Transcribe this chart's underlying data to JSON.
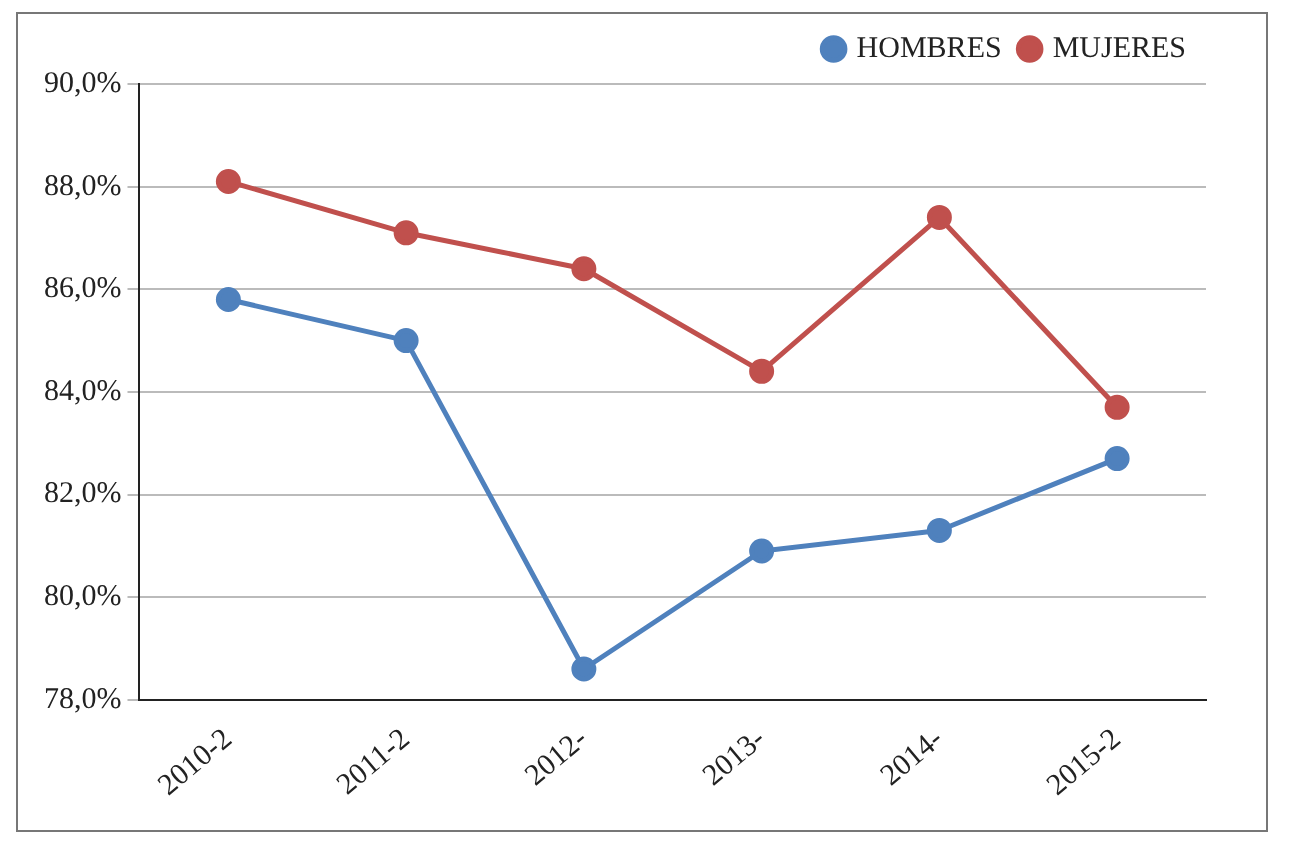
{
  "chart_data": {
    "type": "line",
    "categories": [
      "2010-2",
      "2011-2",
      "2012-",
      "2013-",
      "2014-",
      "2015-2"
    ],
    "series": [
      {
        "name": "HOMBRES",
        "color": "#4f81bd",
        "values": [
          85.8,
          85.0,
          78.6,
          80.9,
          81.3,
          82.7
        ]
      },
      {
        "name": "MUJERES",
        "color": "#c0504d",
        "values": [
          88.1,
          87.1,
          86.4,
          84.4,
          87.4,
          83.7
        ]
      }
    ],
    "ylim": [
      78,
      90
    ],
    "yticks": [
      {
        "value": 78,
        "label": "78,0%"
      },
      {
        "value": 80,
        "label": "80,0%"
      },
      {
        "value": 82,
        "label": "82,0%"
      },
      {
        "value": 84,
        "label": "84,0%"
      },
      {
        "value": 86,
        "label": "86,0%"
      },
      {
        "value": 88,
        "label": "88,0%"
      },
      {
        "value": 90,
        "label": "90,0%"
      }
    ],
    "grid": "y",
    "legend": "top right",
    "marker": "circle",
    "line_style": "solid"
  }
}
